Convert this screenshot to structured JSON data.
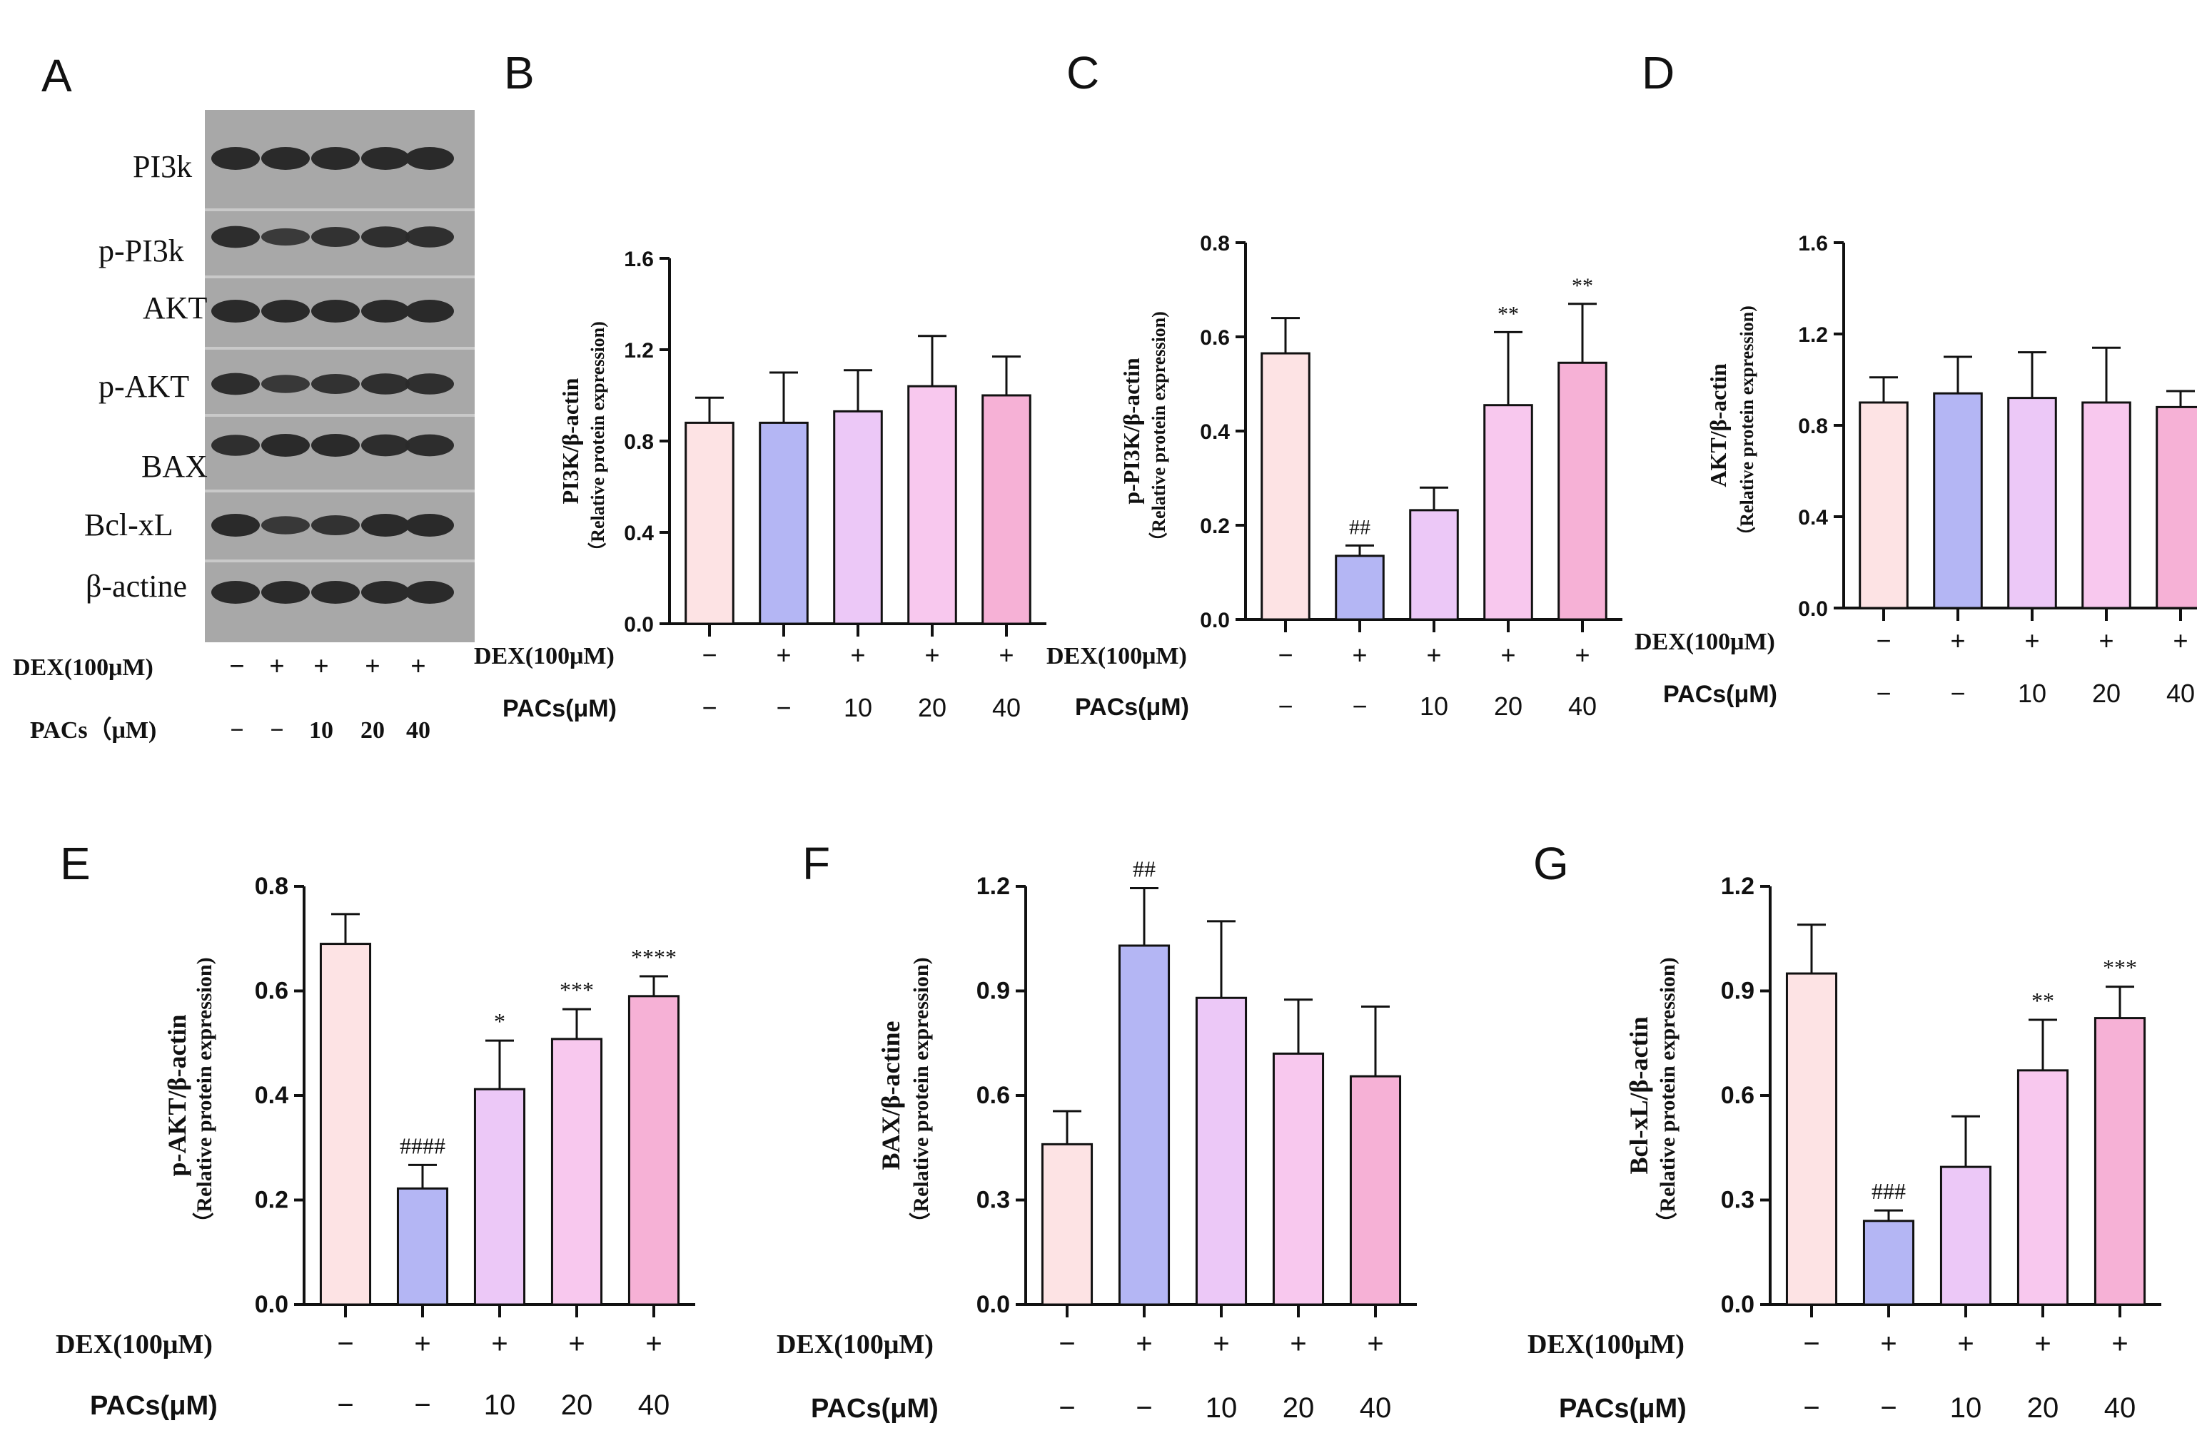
{
  "colors": {
    "bars": [
      "#fde3e4",
      "#b4b6f4",
      "#ecc8f7",
      "#f8c8ee",
      "#f6b1d6"
    ],
    "axis": "#111111",
    "blot_bg": "#a4a4a4",
    "band": "#2a2a2a"
  },
  "western_blot": {
    "panel": "A",
    "band_labels": [
      "PI3k",
      "p-PI3k",
      "AKT",
      "p-AKT",
      "BAX",
      "Bcl-xL",
      "β-actine"
    ],
    "dex_label": "DEX(100μM)",
    "pacs_label": "PACs（μM)",
    "dex_values": [
      "−",
      "+",
      "+",
      "+",
      "+"
    ],
    "pacs_values": [
      "−",
      "−",
      "10",
      "20",
      "40"
    ]
  },
  "chart_data": [
    {
      "panel": "B",
      "type": "bar",
      "ylabel": "PI3K/β-actin",
      "ylabel2": "（Relative protein expression)",
      "ylim": [
        0,
        1.6
      ],
      "yticks": [
        "0.0",
        "0.4",
        "0.8",
        "1.2",
        "1.6"
      ],
      "values": [
        0.88,
        0.88,
        0.93,
        1.04,
        1.0
      ],
      "errors": [
        0.11,
        0.22,
        0.18,
        0.22,
        0.17
      ],
      "annotations": [
        "",
        "",
        "",
        "",
        ""
      ],
      "dex_label": "DEX(100μM)",
      "pacs_label": "PACs(μM)",
      "dex_values": [
        "−",
        "+",
        "+",
        "+",
        "+"
      ],
      "pacs_values": [
        "−",
        "−",
        "10",
        "20",
        "40"
      ]
    },
    {
      "panel": "C",
      "type": "bar",
      "ylabel": "p-PI3K/β-actin",
      "ylabel2": "（Relative protein expression)",
      "ylim": [
        0,
        0.8
      ],
      "yticks": [
        "0.0",
        "0.2",
        "0.4",
        "0.6",
        "0.8"
      ],
      "values": [
        0.565,
        0.135,
        0.232,
        0.455,
        0.545
      ],
      "errors": [
        0.075,
        0.022,
        0.048,
        0.155,
        0.125
      ],
      "annotations": [
        "",
        "##",
        "",
        "**",
        "**"
      ],
      "dex_label": "DEX(100μM)",
      "pacs_label": "PACs(μM)",
      "dex_values": [
        "−",
        "+",
        "+",
        "+",
        "+"
      ],
      "pacs_values": [
        "−",
        "−",
        "10",
        "20",
        "40"
      ]
    },
    {
      "panel": "D",
      "type": "bar",
      "ylabel": "AKT/β-actin",
      "ylabel2": "（Relative protein expression)",
      "ylim": [
        0,
        1.6
      ],
      "yticks": [
        "0.0",
        "0.4",
        "0.8",
        "1.2",
        "1.6"
      ],
      "values": [
        0.9,
        0.94,
        0.92,
        0.9,
        0.88
      ],
      "errors": [
        0.11,
        0.16,
        0.2,
        0.24,
        0.07
      ],
      "annotations": [
        "",
        "",
        "",
        "",
        ""
      ],
      "dex_label": "DEX(100μM)",
      "pacs_label": "PACs(μM)",
      "dex_values": [
        "−",
        "+",
        "+",
        "+",
        "+"
      ],
      "pacs_values": [
        "−",
        "−",
        "10",
        "20",
        "40"
      ]
    },
    {
      "panel": "E",
      "type": "bar",
      "ylabel": "p-AKT/β-actin",
      "ylabel2": "（Relative protein expression)",
      "ylim": [
        0,
        0.8
      ],
      "yticks": [
        "0.0",
        "0.2",
        "0.4",
        "0.6",
        "0.8"
      ],
      "values": [
        0.69,
        0.222,
        0.412,
        0.508,
        0.59
      ],
      "errors": [
        0.057,
        0.045,
        0.093,
        0.057,
        0.038
      ],
      "annotations": [
        "",
        "####",
        "*",
        "***",
        "****"
      ],
      "dex_label": "DEX(100μM)",
      "pacs_label": "PACs(μM)",
      "dex_values": [
        "−",
        "+",
        "+",
        "+",
        "+"
      ],
      "pacs_values": [
        "−",
        "−",
        "10",
        "20",
        "40"
      ]
    },
    {
      "panel": "F",
      "type": "bar",
      "ylabel": "BAX/β-actine",
      "ylabel2": "（Relative protein expression)",
      "ylim": [
        0,
        1.2
      ],
      "yticks": [
        "0.0",
        "0.3",
        "0.6",
        "0.9",
        "1.2"
      ],
      "values": [
        0.46,
        1.03,
        0.88,
        0.72,
        0.655
      ],
      "errors": [
        0.095,
        0.165,
        0.22,
        0.155,
        0.2
      ],
      "annotations": [
        "",
        "##",
        "",
        "",
        ""
      ],
      "dex_label": "DEX(100μM)",
      "pacs_label": "PACs(μM)",
      "dex_values": [
        "−",
        "+",
        "+",
        "+",
        "+"
      ],
      "pacs_values": [
        "−",
        "−",
        "10",
        "20",
        "40"
      ]
    },
    {
      "panel": "G",
      "type": "bar",
      "ylabel": "Bcl-xL/β-actin",
      "ylabel2": "（Relative protein expression)",
      "ylim": [
        0,
        1.2
      ],
      "yticks": [
        "0.0",
        "0.3",
        "0.6",
        "0.9",
        "1.2"
      ],
      "values": [
        0.95,
        0.24,
        0.395,
        0.672,
        0.822
      ],
      "errors": [
        0.14,
        0.03,
        0.145,
        0.145,
        0.09
      ],
      "annotations": [
        "",
        "###",
        "",
        "**",
        "***"
      ],
      "dex_label": "DEX(100μM)",
      "pacs_label": "PACs(μM)",
      "dex_values": [
        "−",
        "+",
        "+",
        "+",
        "+"
      ],
      "pacs_values": [
        "−",
        "−",
        "10",
        "20",
        "40"
      ]
    }
  ]
}
